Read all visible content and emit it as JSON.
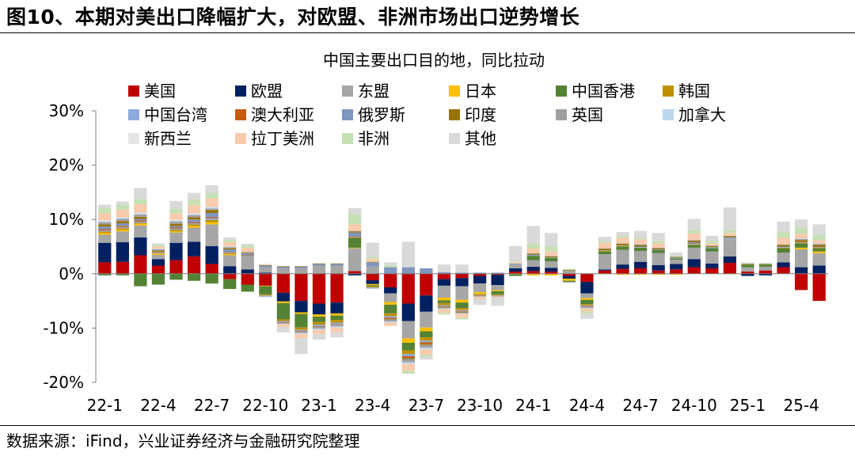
{
  "figure_title": "图10、本期对美出口降幅扩大，对欧盟、非洲市场出口逆势增长",
  "source_note": "数据来源：iFind，兴业证券经济与金融研究院整理",
  "chart_data": {
    "type": "bar",
    "stacked": true,
    "title": "中国主要出口目的地，同比拉动",
    "xlabel": "",
    "ylabel": "",
    "ylim": [
      -20,
      30
    ],
    "yticks": [
      -20,
      -10,
      0,
      10,
      20,
      30
    ],
    "ytick_labels": [
      "-20%",
      "-10%",
      "0%",
      "10%",
      "20%",
      "30%"
    ],
    "xtick_labels": [
      "22-1",
      "22-4",
      "22-7",
      "22-10",
      "23-1",
      "23-4",
      "23-7",
      "23-10",
      "24-1",
      "24-4",
      "24-7",
      "24-10",
      "25-1",
      "25-4"
    ],
    "xtick_every": 3,
    "grid": false,
    "legend_position": "top-left",
    "categories": [
      "22-1",
      "22-2",
      "22-3",
      "22-4",
      "22-5",
      "22-6",
      "22-7",
      "22-8",
      "22-9",
      "22-10",
      "22-11",
      "22-12",
      "23-1",
      "23-2",
      "23-3",
      "23-4",
      "23-5",
      "23-6",
      "23-7",
      "23-8",
      "23-9",
      "23-10",
      "23-11",
      "23-12",
      "24-1",
      "24-2",
      "24-3",
      "24-4",
      "24-5",
      "24-6",
      "24-7",
      "24-8",
      "24-9",
      "24-10",
      "24-11",
      "24-12",
      "25-1",
      "25-2",
      "25-3",
      "25-4",
      "25-5"
    ],
    "series": [
      {
        "name": "美国",
        "color": "#C00000",
        "values": [
          2.1,
          2.2,
          3.4,
          1.5,
          2.5,
          3.2,
          1.8,
          -1.0,
          -2.0,
          -2.2,
          -3.5,
          -5.0,
          -5.5,
          -5.3,
          0.5,
          -1.2,
          -2.5,
          -5.5,
          -4.0,
          -1.0,
          -0.8,
          -0.4,
          -0.2,
          0.4,
          0.5,
          0.4,
          -0.4,
          -1.5,
          0.6,
          0.9,
          1.0,
          0.6,
          0.8,
          1.2,
          1.0,
          2.0,
          0.4,
          0.6,
          1.2,
          -3.0,
          -5.0
        ]
      },
      {
        "name": "欧盟",
        "color": "#002060",
        "values": [
          3.6,
          3.6,
          3.3,
          1.2,
          3.2,
          2.7,
          3.3,
          1.4,
          0.8,
          0.2,
          -1.6,
          -2.1,
          -2.0,
          -2.0,
          -0.3,
          -0.7,
          -1.1,
          -3.2,
          -3.0,
          -1.2,
          -1.5,
          -1.4,
          -1.9,
          0.6,
          0.8,
          0.7,
          -0.5,
          -2.1,
          0.2,
          0.8,
          1.2,
          1.0,
          1.0,
          1.5,
          0.9,
          1.2,
          -0.4,
          -0.3,
          0.9,
          1.2,
          1.5
        ]
      },
      {
        "name": "东盟",
        "color": "#A6A6A6",
        "values": [
          1.5,
          2.0,
          2.2,
          0.8,
          1.9,
          2.6,
          4.0,
          2.0,
          2.5,
          1.0,
          1.0,
          1.0,
          1.5,
          1.5,
          4.2,
          1.3,
          -1.6,
          -3.2,
          -2.9,
          -2.2,
          -2.5,
          -1.6,
          -0.9,
          0.7,
          1.2,
          1.2,
          0.6,
          -0.9,
          2.8,
          2.7,
          2.0,
          2.2,
          0.8,
          2.1,
          2.2,
          3.3,
          0.8,
          0.7,
          1.8,
          3.3,
          2.3
        ]
      },
      {
        "name": "日本",
        "color": "#FFC000",
        "values": [
          0.3,
          0.3,
          0.3,
          0.2,
          0.2,
          0.3,
          0.4,
          0.2,
          0.0,
          -0.1,
          -0.3,
          -0.3,
          -0.4,
          -0.4,
          0.1,
          -0.2,
          -0.5,
          -0.8,
          -0.7,
          -0.5,
          -0.5,
          -0.3,
          -0.2,
          -0.1,
          -0.3,
          -0.3,
          -0.4,
          -0.3,
          -0.1,
          -0.2,
          -0.2,
          -0.2,
          -0.2,
          0.0,
          0.0,
          -0.1,
          0.0,
          0.0,
          0.0,
          0.3,
          0.3
        ]
      },
      {
        "name": "中国香港",
        "color": "#548235",
        "values": [
          -0.3,
          -0.3,
          -2.3,
          -2.0,
          -1.1,
          -1.3,
          -1.8,
          -1.8,
          -1.3,
          -1.5,
          -3.0,
          -2.5,
          -1.0,
          -0.8,
          1.8,
          -0.2,
          -1.6,
          -1.4,
          -1.1,
          -0.5,
          -1.0,
          0.0,
          -0.6,
          -0.3,
          0.8,
          0.6,
          -0.2,
          -0.8,
          0.5,
          0.6,
          0.6,
          0.6,
          0.2,
          0.5,
          0.6,
          0.0,
          0.5,
          0.4,
          0.8,
          0.8,
          0.6
        ]
      },
      {
        "name": "韩国",
        "color": "#BF9000",
        "values": [
          0.3,
          0.3,
          0.2,
          0.1,
          0.3,
          0.3,
          0.4,
          0.2,
          0.0,
          -0.2,
          -0.3,
          -0.4,
          -0.5,
          -0.5,
          0.1,
          -0.2,
          -0.5,
          -0.7,
          -0.6,
          -0.4,
          -0.4,
          -0.2,
          -0.2,
          0.0,
          0.0,
          0.0,
          0.0,
          -0.2,
          0.1,
          0.1,
          0.0,
          0.0,
          0.0,
          0.1,
          0.0,
          0.0,
          0.0,
          0.0,
          0.1,
          0.1,
          0.1
        ]
      },
      {
        "name": "中国台湾",
        "color": "#8EA9DB",
        "values": [
          0.2,
          0.2,
          0.2,
          0.1,
          0.2,
          0.2,
          0.3,
          0.1,
          0.0,
          -0.1,
          -0.2,
          -0.2,
          -0.3,
          -0.3,
          0.1,
          -0.1,
          -0.3,
          -0.4,
          -0.3,
          -0.2,
          -0.2,
          -0.1,
          -0.1,
          0.0,
          0.1,
          0.1,
          0.0,
          -0.1,
          0.1,
          0.1,
          0.1,
          0.1,
          0.0,
          0.1,
          0.1,
          0.1,
          0.0,
          0.0,
          0.1,
          0.1,
          0.1
        ]
      },
      {
        "name": "澳大利亚",
        "color": "#C55A11",
        "values": [
          0.2,
          0.2,
          0.2,
          0.1,
          0.2,
          0.2,
          0.2,
          0.1,
          0.1,
          0.0,
          -0.1,
          -0.1,
          -0.1,
          -0.1,
          0.1,
          0.0,
          -0.2,
          -0.3,
          -0.3,
          -0.1,
          -0.1,
          0.0,
          0.0,
          0.0,
          0.0,
          0.0,
          0.0,
          -0.1,
          0.0,
          0.0,
          0.0,
          0.0,
          0.0,
          0.1,
          0.0,
          0.0,
          0.0,
          0.0,
          0.0,
          0.1,
          0.1
        ]
      },
      {
        "name": "俄罗斯",
        "color": "#7F96BF",
        "values": [
          0.5,
          0.5,
          0.3,
          0.1,
          0.3,
          0.5,
          0.8,
          0.5,
          0.4,
          0.3,
          0.3,
          0.3,
          0.3,
          0.3,
          0.7,
          0.8,
          1.2,
          1.2,
          1.0,
          0.3,
          0.2,
          0.2,
          0.2,
          0.1,
          0.1,
          0.0,
          0.0,
          -0.1,
          0.0,
          0.0,
          0.1,
          0.0,
          0.2,
          0.2,
          0.1,
          0.1,
          0.0,
          0.0,
          0.1,
          0.0,
          0.0
        ]
      },
      {
        "name": "印度",
        "color": "#997300",
        "values": [
          0.4,
          0.4,
          0.4,
          0.2,
          0.4,
          0.4,
          0.5,
          0.2,
          0.1,
          0.1,
          0.1,
          0.1,
          0.1,
          0.1,
          0.2,
          0.1,
          -0.1,
          -0.2,
          -0.2,
          -0.1,
          -0.1,
          -0.1,
          0.0,
          0.0,
          0.2,
          0.2,
          0.1,
          0.0,
          0.3,
          0.3,
          0.3,
          0.2,
          0.1,
          0.3,
          0.2,
          0.2,
          0.1,
          0.1,
          0.3,
          0.3,
          0.3
        ]
      },
      {
        "name": "英国",
        "color": "#A0A0A0",
        "values": [
          0.4,
          0.4,
          0.4,
          0.2,
          0.4,
          0.4,
          0.3,
          0.2,
          0.1,
          -0.1,
          -0.2,
          -0.3,
          -0.3,
          -0.3,
          0.1,
          -0.1,
          -0.4,
          -0.6,
          -0.5,
          -0.2,
          -0.2,
          -0.1,
          -0.1,
          0.1,
          0.1,
          0.1,
          -0.1,
          -0.2,
          0.1,
          0.1,
          0.1,
          0.1,
          0.0,
          0.1,
          0.1,
          0.1,
          0.0,
          0.0,
          0.1,
          0.2,
          0.2
        ]
      },
      {
        "name": "加拿大",
        "color": "#BDD7EE",
        "values": [
          0.2,
          0.2,
          0.2,
          0.1,
          0.2,
          0.2,
          0.2,
          0.1,
          0.0,
          -0.1,
          -0.1,
          -0.2,
          -0.2,
          -0.2,
          0.0,
          -0.1,
          -0.2,
          -0.3,
          -0.3,
          -0.1,
          -0.1,
          -0.1,
          0.0,
          0.0,
          0.0,
          0.0,
          0.0,
          -0.1,
          0.0,
          0.0,
          0.1,
          0.0,
          0.0,
          0.0,
          0.0,
          0.0,
          0.0,
          0.0,
          0.0,
          0.1,
          0.1
        ]
      },
      {
        "name": "新西兰",
        "color": "#E7E6E6",
        "values": [
          0.1,
          0.1,
          0.1,
          0.0,
          0.1,
          0.1,
          0.1,
          0.0,
          0.0,
          0.0,
          0.0,
          0.0,
          0.0,
          0.0,
          0.0,
          0.0,
          0.0,
          0.0,
          0.0,
          0.0,
          0.0,
          0.0,
          0.0,
          0.0,
          0.0,
          0.0,
          0.0,
          0.0,
          0.0,
          0.0,
          0.0,
          0.0,
          0.0,
          0.0,
          0.0,
          0.0,
          0.0,
          0.0,
          0.0,
          0.0,
          0.0
        ]
      },
      {
        "name": "拉丁美洲",
        "color": "#F8CBAD",
        "values": [
          1.4,
          1.4,
          1.6,
          0.4,
          1.2,
          1.6,
          1.6,
          0.8,
          0.8,
          0.1,
          -0.5,
          -0.8,
          -0.8,
          -0.8,
          1.2,
          0.5,
          -0.6,
          -1.3,
          -1.0,
          -0.7,
          -0.7,
          -0.4,
          -0.2,
          0.2,
          0.9,
          0.8,
          0.0,
          -0.5,
          1.0,
          1.0,
          0.8,
          0.8,
          0.0,
          1.2,
          0.4,
          0.5,
          0.0,
          0.0,
          1.2,
          0.9,
          0.6
        ]
      },
      {
        "name": "非洲",
        "color": "#C5E0B4",
        "values": [
          0.9,
          0.9,
          1.0,
          0.3,
          0.8,
          1.0,
          1.0,
          0.4,
          0.4,
          0.0,
          0.0,
          0.0,
          0.0,
          0.0,
          1.9,
          0.4,
          0.4,
          -0.5,
          -0.4,
          -0.3,
          -0.3,
          0.0,
          0.0,
          0.1,
          0.9,
          0.9,
          0.2,
          -0.4,
          0.3,
          0.3,
          0.3,
          0.4,
          0.2,
          0.6,
          0.4,
          0.5,
          0.1,
          0.1,
          1.2,
          1.1,
          1.0
        ]
      },
      {
        "name": "其他",
        "color": "#D9D9D9",
        "values": [
          0.6,
          0.6,
          2.0,
          0.3,
          1.5,
          1.2,
          1.4,
          0.5,
          0.3,
          0.1,
          -1.0,
          -2.9,
          -1.0,
          -1.0,
          1.1,
          2.6,
          0.5,
          4.7,
          -0.5,
          1.4,
          1.5,
          -1.0,
          -1.5,
          2.9,
          3.2,
          2.5,
          0.0,
          -1.0,
          0.8,
          0.8,
          1.3,
          1.5,
          0.6,
          2.1,
          1.0,
          4.2,
          0.2,
          0.1,
          1.8,
          1.5,
          1.9
        ]
      }
    ]
  }
}
